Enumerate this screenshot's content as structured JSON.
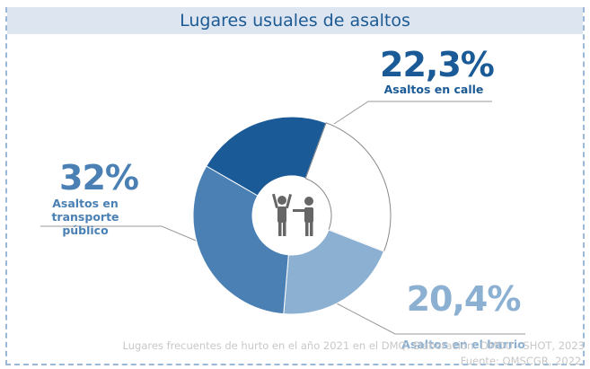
{
  "chart_data": {
    "type": "donut",
    "title": "Lugares usuales de asaltos",
    "categories": [
      "Asaltos en calle",
      null,
      "Asaltos en el barrio",
      "Asaltos en transporte público"
    ],
    "values": [
      22.3,
      25.3,
      20.4,
      32
    ],
    "value_labels": [
      "22,3%",
      null,
      "20,4%",
      "32%"
    ],
    "colors": [
      "#1a5a96",
      "#ffffff",
      "#8cb0d2",
      "#4a80b4"
    ],
    "notes": [
      "Lugares frecuentes de hurto en el año 2021 en el DMQ. Elaboración: DMDU - SHOT, 2023",
      "Fuente: OMSCGR, 2022."
    ]
  }
}
